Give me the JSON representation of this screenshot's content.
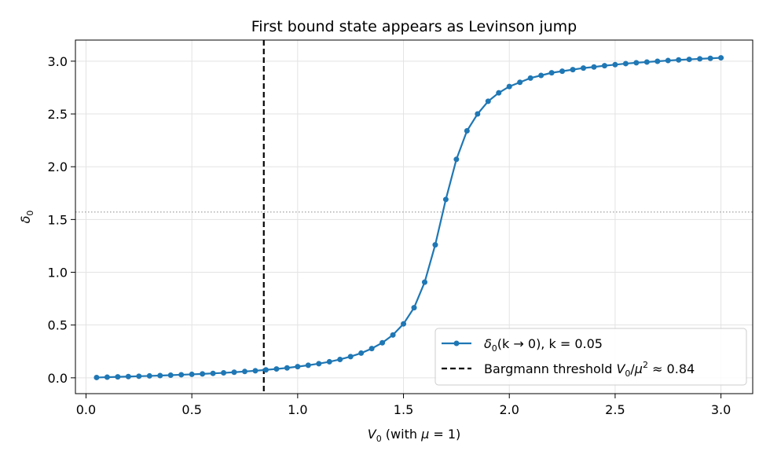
{
  "chart_data": {
    "type": "line",
    "title": "First bound state appears as Levinson jump",
    "xlabel_main": "V",
    "xlabel_sub": "0",
    "xlabel_rest": " (with ",
    "xlabel_mu": "μ",
    "xlabel_end": " = 1)",
    "ylabel_main": "δ",
    "ylabel_sub": "0",
    "xlim": [
      -0.05,
      3.15
    ],
    "ylim": [
      -0.15,
      3.2
    ],
    "xticks": [
      0.0,
      0.5,
      1.0,
      1.5,
      2.0,
      2.5,
      3.0
    ],
    "xtick_labels": [
      "0.0",
      "0.5",
      "1.0",
      "1.5",
      "2.0",
      "2.5",
      "3.0"
    ],
    "yticks": [
      0.0,
      0.5,
      1.0,
      1.5,
      2.0,
      2.5,
      3.0
    ],
    "ytick_labels": [
      "0.0",
      "0.5",
      "1.0",
      "1.5",
      "2.0",
      "2.5",
      "3.0"
    ],
    "grid": true,
    "legend_position": "lower-right",
    "series": [
      {
        "name_main": "δ",
        "name_sub": "0",
        "name_rest": "(k → 0), k = 0.05",
        "color": "#1f77b4",
        "x": [
          0.05,
          0.1,
          0.15,
          0.2,
          0.25,
          0.3,
          0.35,
          0.4,
          0.45,
          0.5,
          0.55,
          0.6,
          0.65,
          0.7,
          0.75,
          0.8,
          0.85,
          0.9,
          0.95,
          1.0,
          1.05,
          1.1,
          1.15,
          1.2,
          1.25,
          1.3,
          1.35,
          1.4,
          1.45,
          1.5,
          1.55,
          1.6,
          1.65,
          1.7,
          1.75,
          1.8,
          1.85,
          1.9,
          1.95,
          2.0,
          2.05,
          2.1,
          2.15,
          2.2,
          2.25,
          2.3,
          2.35,
          2.4,
          2.45,
          2.5,
          2.55,
          2.6,
          2.65,
          2.7,
          2.75,
          2.8,
          2.85,
          2.9,
          2.95,
          3.0
        ],
        "y": [
          0.003,
          0.006,
          0.009,
          0.012,
          0.015,
          0.018,
          0.021,
          0.025,
          0.029,
          0.033,
          0.037,
          0.042,
          0.047,
          0.053,
          0.06,
          0.067,
          0.075,
          0.084,
          0.094,
          0.106,
          0.119,
          0.134,
          0.152,
          0.174,
          0.201,
          0.234,
          0.277,
          0.332,
          0.406,
          0.511,
          0.664,
          0.906,
          1.26,
          1.69,
          2.07,
          2.34,
          2.5,
          2.62,
          2.7,
          2.76,
          2.8,
          2.84,
          2.865,
          2.89,
          2.905,
          2.92,
          2.935,
          2.945,
          2.957,
          2.967,
          2.977,
          2.985,
          2.992,
          2.999,
          3.006,
          3.012,
          3.017,
          3.022,
          3.027,
          3.032
        ]
      }
    ],
    "threshold": {
      "x": 0.84,
      "name_text": "Bargmann threshold ",
      "name_v": "V",
      "name_vsub": "0",
      "name_slash": "/",
      "name_mu": "μ",
      "name_sup": "2",
      "name_approx": " ≈ 0.84",
      "color": "#000000"
    },
    "reference_line_y": 1.5708
  }
}
